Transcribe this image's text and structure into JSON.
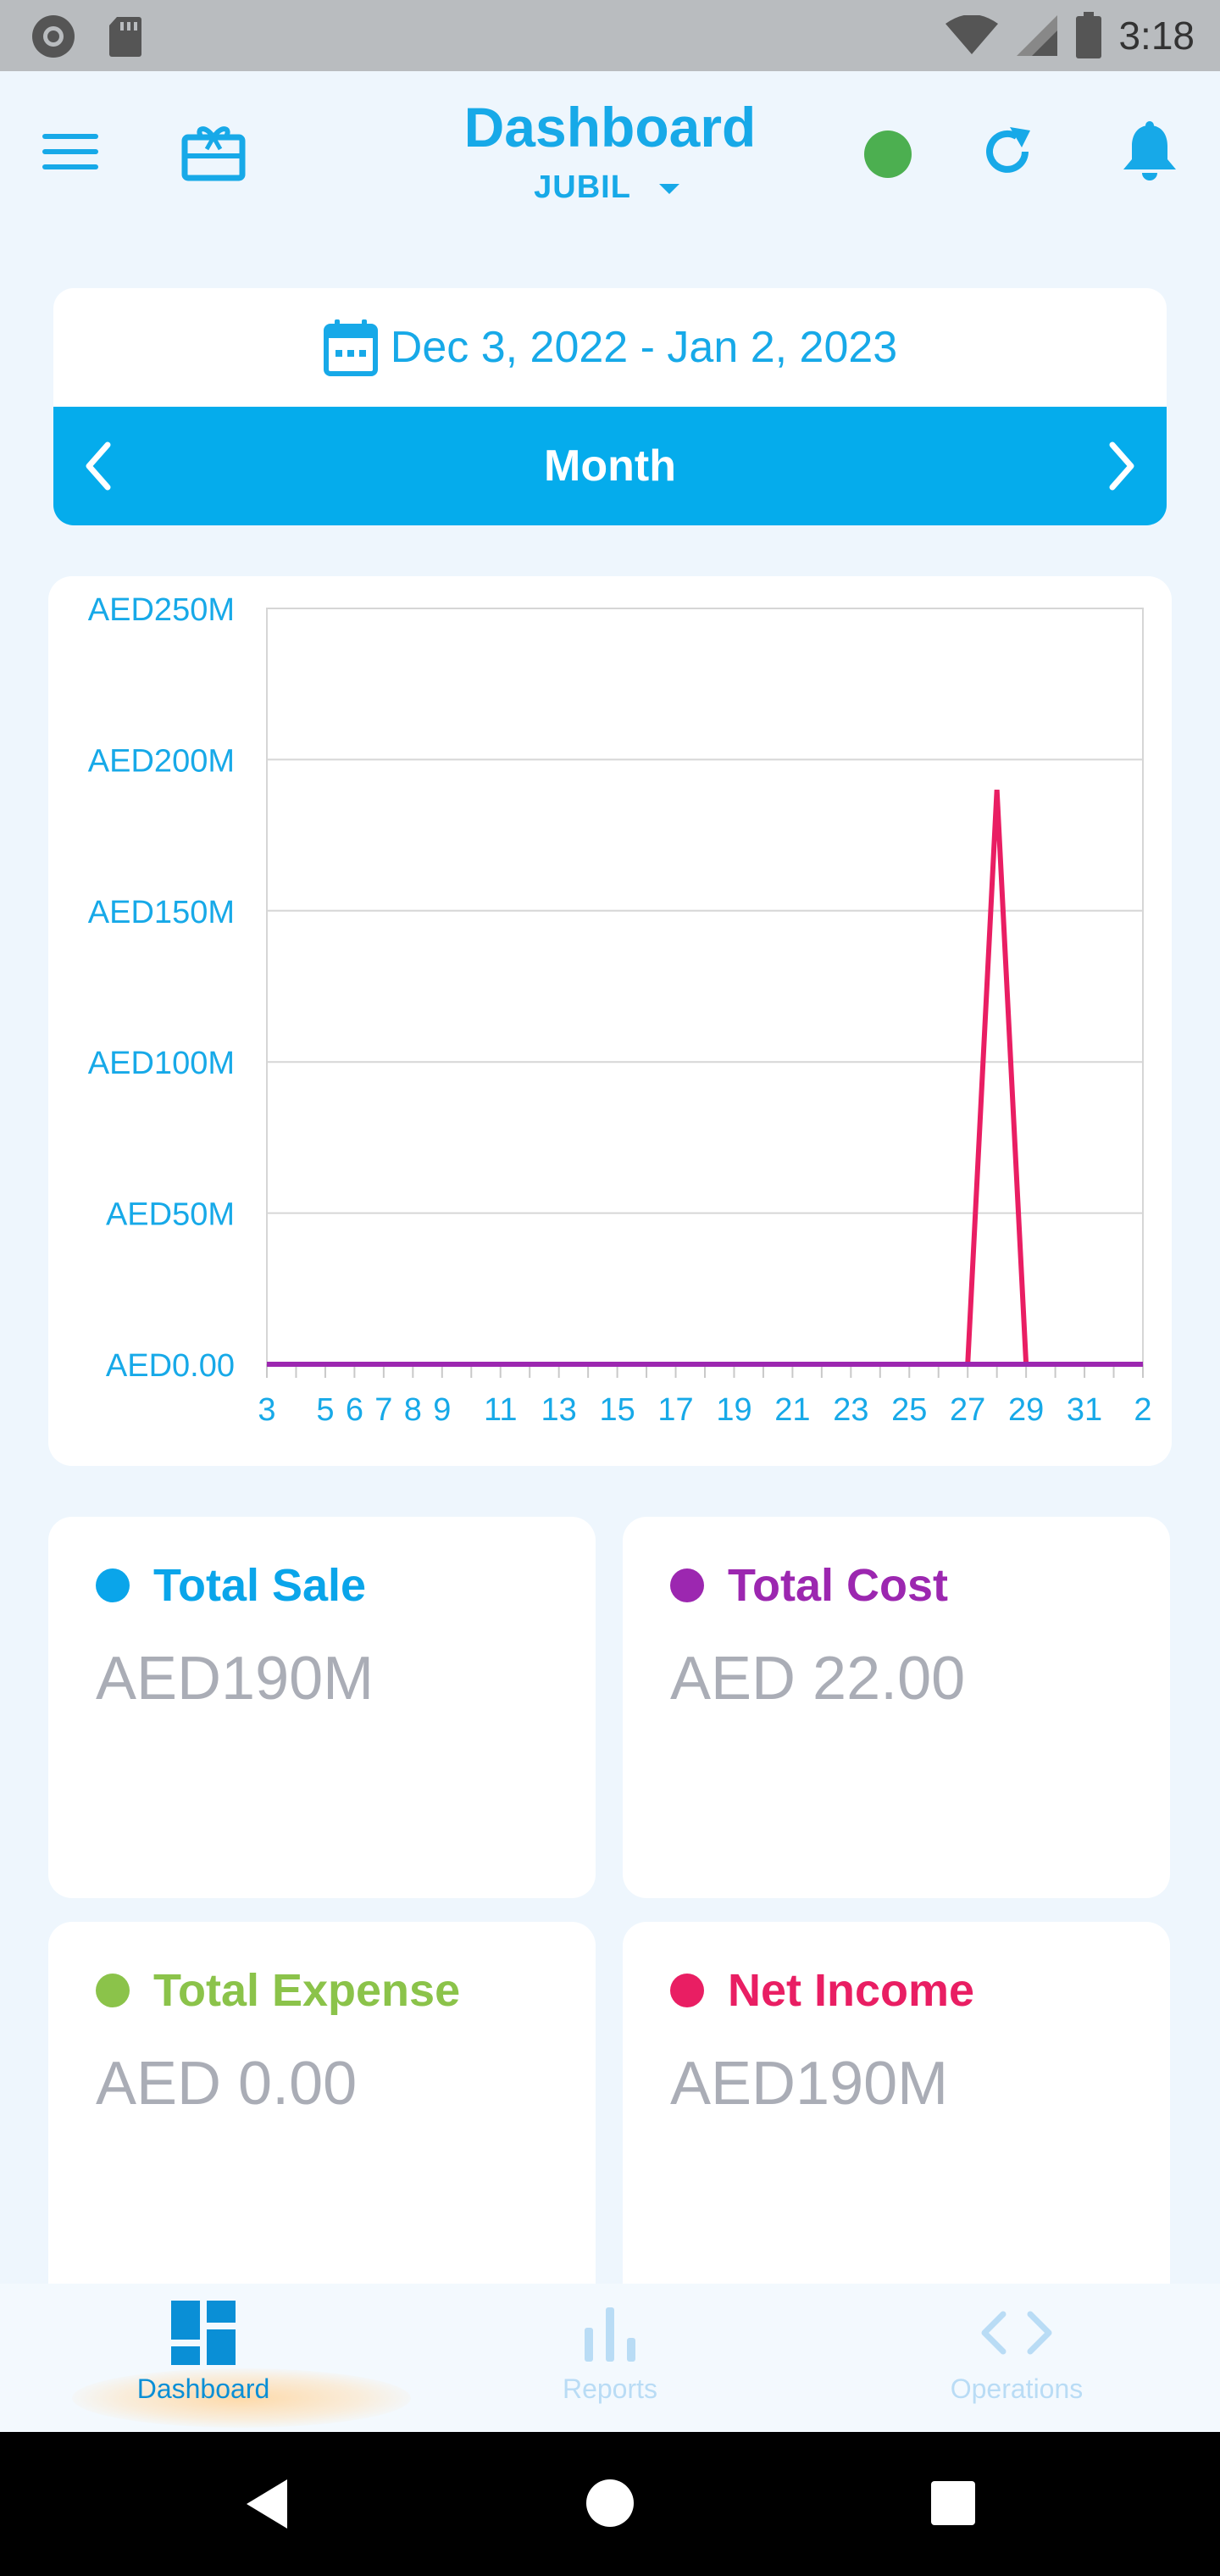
{
  "status_bar": {
    "time": "3:18"
  },
  "header": {
    "title": "Dashboard",
    "subtitle": "JUBIL",
    "status_color": "#4caf50"
  },
  "date_range": {
    "text": "Dec 3, 2022 - Jan 2, 2023",
    "period": "Month"
  },
  "chart_data": {
    "type": "line",
    "y_tick_labels": [
      "AED250M",
      "AED200M",
      "AED150M",
      "AED100M",
      "AED50M",
      "AED0.00"
    ],
    "x_tick_labels": [
      "3",
      "5",
      "6",
      "7",
      "8",
      "9",
      "11",
      "13",
      "15",
      "17",
      "19",
      "21",
      "23",
      "25",
      "27",
      "29",
      "31",
      "2"
    ],
    "ylim": [
      0,
      250000000
    ],
    "grid": true,
    "x": [
      "Dec 3",
      "Dec 4",
      "Dec 5",
      "Dec 6",
      "Dec 7",
      "Dec 8",
      "Dec 9",
      "Dec 10",
      "Dec 11",
      "Dec 12",
      "Dec 13",
      "Dec 14",
      "Dec 15",
      "Dec 16",
      "Dec 17",
      "Dec 18",
      "Dec 19",
      "Dec 20",
      "Dec 21",
      "Dec 22",
      "Dec 23",
      "Dec 24",
      "Dec 25",
      "Dec 26",
      "Dec 27",
      "Dec 28",
      "Dec 29",
      "Dec 30",
      "Dec 31",
      "Jan 1",
      "Jan 2"
    ],
    "series": [
      {
        "color": "#e91e63",
        "values": [
          0,
          0,
          0,
          0,
          0,
          0,
          0,
          0,
          0,
          0,
          0,
          0,
          0,
          0,
          0,
          0,
          0,
          0,
          0,
          0,
          0,
          0,
          0,
          0,
          0,
          190000000,
          0,
          0,
          0,
          0,
          0
        ]
      },
      {
        "color": "#9c27b0",
        "values": [
          0,
          0,
          0,
          0,
          0,
          0,
          0,
          0,
          0,
          0,
          0,
          0,
          0,
          0,
          0,
          0,
          0,
          0,
          0,
          0,
          0,
          0,
          0,
          0,
          0,
          0,
          0,
          0,
          0,
          0,
          0
        ]
      }
    ]
  },
  "stats": [
    {
      "label": "Total Sale",
      "value": "AED190M",
      "color": "#0aa5ea"
    },
    {
      "label": "Total Cost",
      "value": "AED 22.00",
      "color": "#9c27b0"
    },
    {
      "label": "Total Expense",
      "value": "AED 0.00",
      "color": "#8bc34a"
    },
    {
      "label": "Net Income",
      "value": "AED190M",
      "color": "#e91e63"
    }
  ],
  "nav": {
    "items": [
      {
        "label": "Dashboard",
        "icon": "dashboard-icon",
        "active": true
      },
      {
        "label": "Reports",
        "icon": "bar-chart-icon",
        "active": false
      },
      {
        "label": "Operations",
        "icon": "code-icon",
        "active": false
      }
    ],
    "active_color": "#0a8fd6",
    "inactive_color": "#b9dcf5"
  }
}
